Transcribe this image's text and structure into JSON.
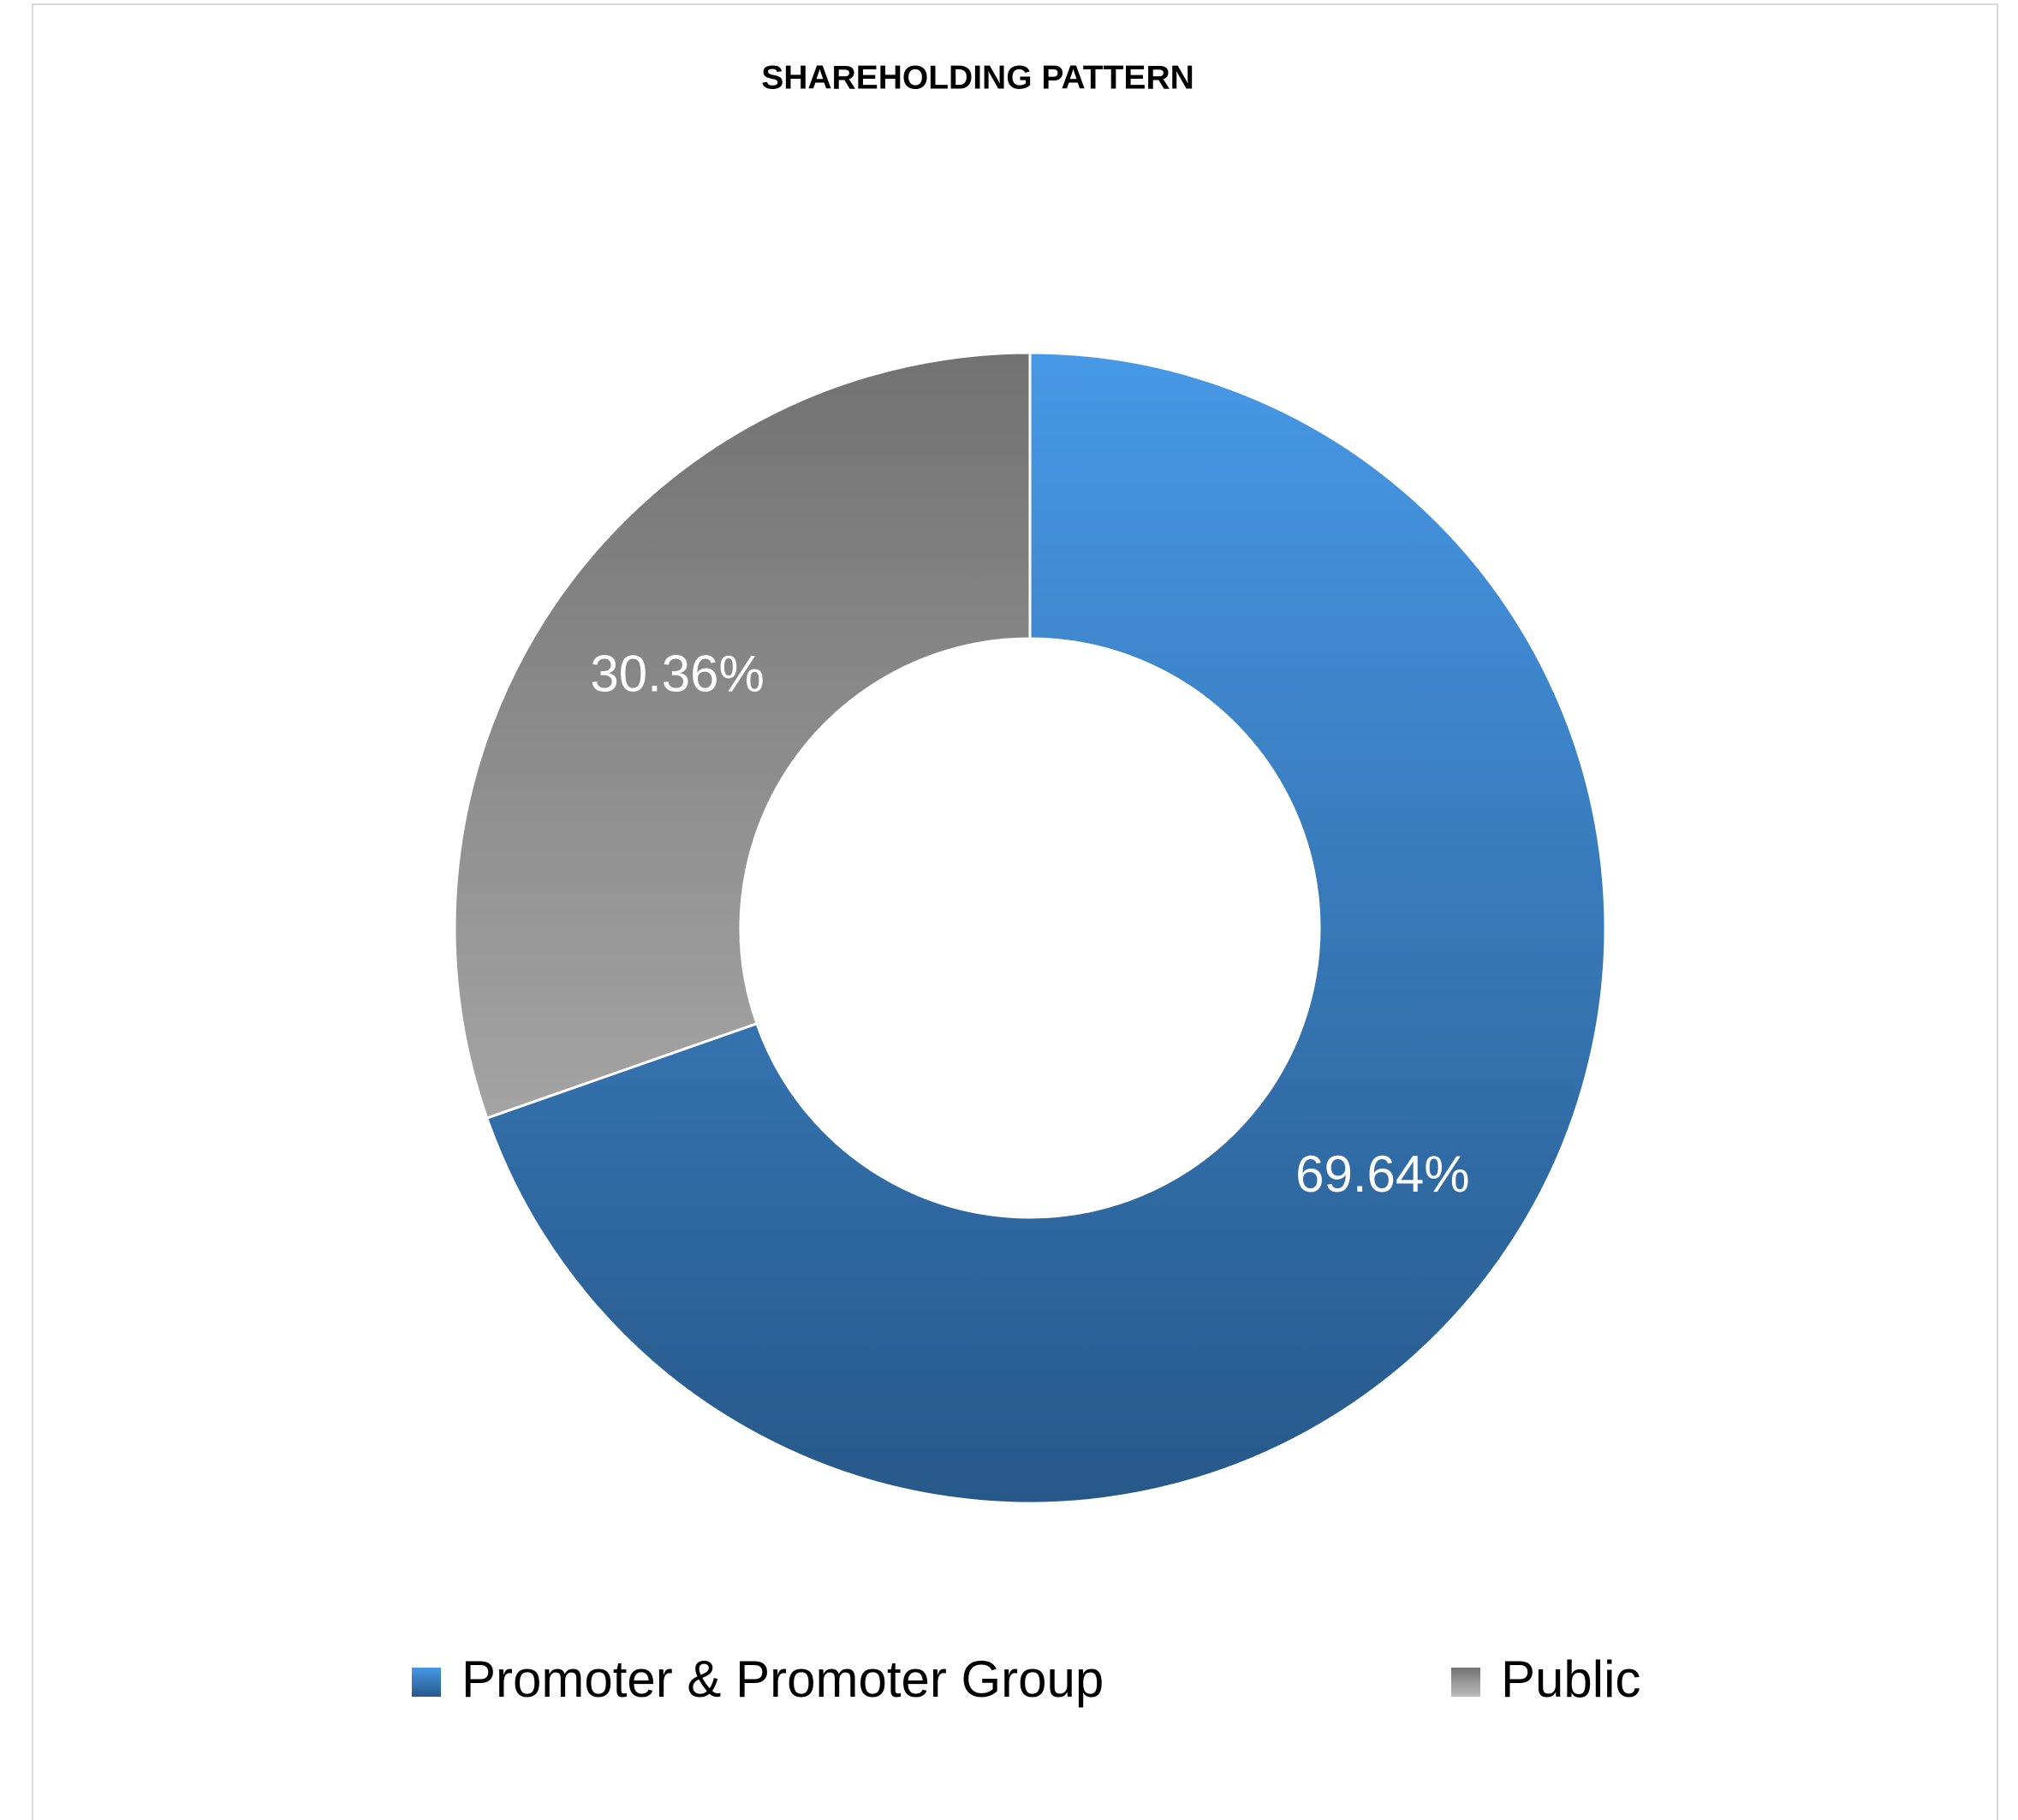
{
  "chart_data": {
    "type": "donut",
    "title": "SHAREHOLDING PATTERN",
    "categories": [
      "Promoter & Promoter Group",
      "Public"
    ],
    "values": [
      69.64,
      30.36
    ],
    "value_labels": [
      "69.64%",
      "30.36%"
    ],
    "colors": [
      [
        "#4798e6",
        "#275889"
      ],
      [
        "#727272",
        "#bdbdbd"
      ]
    ],
    "legend": "bottom"
  }
}
